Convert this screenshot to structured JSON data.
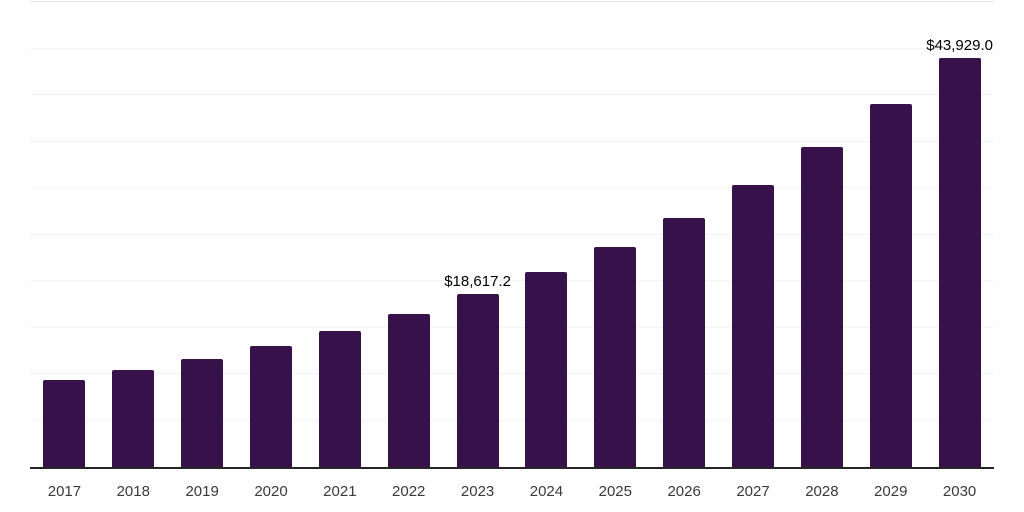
{
  "chart_data": {
    "type": "bar",
    "title": "",
    "xlabel": "",
    "ylabel": "",
    "categories": [
      "2017",
      "2018",
      "2019",
      "2020",
      "2021",
      "2022",
      "2023",
      "2024",
      "2025",
      "2026",
      "2027",
      "2028",
      "2029",
      "2030"
    ],
    "values": [
      9400,
      10470,
      11650,
      13040,
      14650,
      16470,
      18617.2,
      21000,
      23670,
      26780,
      30320,
      34400,
      39000,
      43929.0
    ],
    "point_labels": [
      "",
      "",
      "",
      "",
      "",
      "",
      "$18,617.2",
      "",
      "",
      "",
      "",
      "",
      "",
      "$43,929.0"
    ],
    "ylim": [
      0,
      50000
    ],
    "gridline_step": 5000,
    "grid": "horizontal-only",
    "legend": "none",
    "y_tick_labels_visible": false,
    "colors": {
      "bar": "#36114a",
      "axis_line": "#262626",
      "gridline": "#f2f2f2",
      "top_gridline": "#e3e3e3",
      "x_tick_label": "#3a3a3a",
      "data_label": "#000000",
      "background": "#ffffff"
    }
  }
}
